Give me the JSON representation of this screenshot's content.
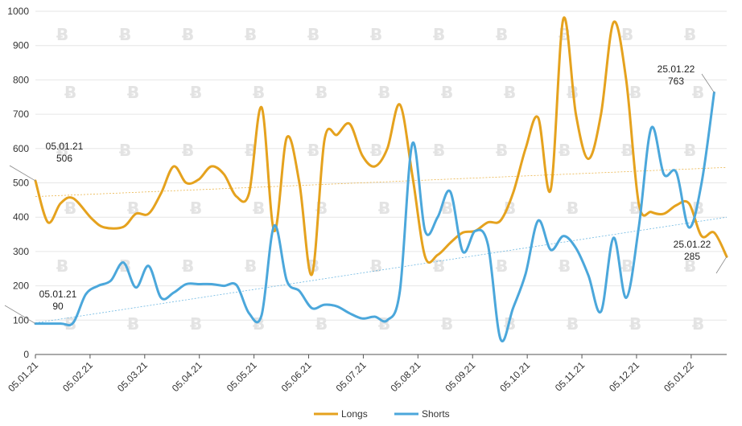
{
  "chart_data": {
    "type": "line",
    "title": "",
    "xlabel": "",
    "ylabel": "",
    "ylim": [
      0,
      1000
    ],
    "yticks": [
      0,
      100,
      200,
      300,
      400,
      500,
      600,
      700,
      800,
      900,
      1000
    ],
    "x_tick_labels": [
      "05.01.21",
      "05.02.21",
      "05.03.21",
      "05.04.21",
      "05.05.21",
      "05.06.21",
      "05.07.21",
      "05.08.21",
      "05.09.21",
      "05.10.21",
      "05.11.21",
      "05.12.21",
      "05.01.22"
    ],
    "grid": "horizontal",
    "legend": "bottom-center",
    "series": [
      {
        "name": "Longs",
        "color": "#E5A21E",
        "trendline": [
          460,
          545
        ],
        "values": [
          [
            0,
            506
          ],
          [
            2,
            385
          ],
          [
            4,
            440
          ],
          [
            6,
            455
          ],
          [
            9,
            395
          ],
          [
            11,
            370
          ],
          [
            14,
            372
          ],
          [
            16,
            410
          ],
          [
            18,
            410
          ],
          [
            20,
            470
          ],
          [
            22,
            548
          ],
          [
            24,
            500
          ],
          [
            26,
            510
          ],
          [
            28,
            548
          ],
          [
            30,
            525
          ],
          [
            32,
            460
          ],
          [
            34,
            470
          ],
          [
            36,
            720
          ],
          [
            38,
            360
          ],
          [
            40,
            632
          ],
          [
            42,
            500
          ],
          [
            44,
            233
          ],
          [
            46,
            625
          ],
          [
            48,
            640
          ],
          [
            50,
            672
          ],
          [
            52,
            580
          ],
          [
            54,
            548
          ],
          [
            56,
            600
          ],
          [
            58,
            728
          ],
          [
            60,
            520
          ],
          [
            62,
            285
          ],
          [
            64,
            290
          ],
          [
            66,
            325
          ],
          [
            68,
            355
          ],
          [
            70,
            360
          ],
          [
            72,
            385
          ],
          [
            74,
            390
          ],
          [
            76,
            470
          ],
          [
            78,
            600
          ],
          [
            80,
            690
          ],
          [
            82,
            480
          ],
          [
            84,
            978
          ],
          [
            86,
            700
          ],
          [
            88,
            570
          ],
          [
            90,
            700
          ],
          [
            92,
            968
          ],
          [
            94,
            800
          ],
          [
            96,
            440
          ],
          [
            98,
            415
          ],
          [
            100,
            410
          ],
          [
            102,
            435
          ],
          [
            104,
            440
          ],
          [
            106,
            345
          ],
          [
            108,
            355
          ],
          [
            110,
            285
          ]
        ]
      },
      {
        "name": "Shorts",
        "color": "#4BA7DB",
        "trendline": [
          92,
          400
        ],
        "values": [
          [
            0,
            90
          ],
          [
            4,
            90
          ],
          [
            6,
            92
          ],
          [
            8,
            175
          ],
          [
            10,
            200
          ],
          [
            12,
            215
          ],
          [
            14,
            268
          ],
          [
            16,
            195
          ],
          [
            18,
            258
          ],
          [
            20,
            165
          ],
          [
            22,
            180
          ],
          [
            24,
            205
          ],
          [
            26,
            205
          ],
          [
            28,
            205
          ],
          [
            30,
            200
          ],
          [
            32,
            202
          ],
          [
            34,
            120
          ],
          [
            36,
            115
          ],
          [
            38,
            375
          ],
          [
            40,
            215
          ],
          [
            42,
            185
          ],
          [
            44,
            135
          ],
          [
            46,
            145
          ],
          [
            48,
            140
          ],
          [
            50,
            120
          ],
          [
            52,
            105
          ],
          [
            54,
            110
          ],
          [
            56,
            100
          ],
          [
            58,
            185
          ],
          [
            60,
            615
          ],
          [
            62,
            360
          ],
          [
            64,
            400
          ],
          [
            66,
            475
          ],
          [
            68,
            300
          ],
          [
            70,
            360
          ],
          [
            72,
            320
          ],
          [
            74,
            45
          ],
          [
            76,
            135
          ],
          [
            78,
            235
          ],
          [
            80,
            390
          ],
          [
            82,
            305
          ],
          [
            84,
            345
          ],
          [
            86,
            310
          ],
          [
            88,
            230
          ],
          [
            90,
            125
          ],
          [
            92,
            340
          ],
          [
            94,
            165
          ],
          [
            96,
            370
          ],
          [
            98,
            660
          ],
          [
            100,
            525
          ],
          [
            102,
            530
          ],
          [
            104,
            370
          ],
          [
            106,
            500
          ],
          [
            108,
            763
          ]
        ]
      }
    ],
    "annotations": [
      {
        "series": "Longs",
        "date": "05.01.21",
        "value": "506"
      },
      {
        "series": "Shorts",
        "date": "05.01.21",
        "value": "90"
      },
      {
        "series": "Shorts",
        "date": "25.01.22",
        "value": "763"
      },
      {
        "series": "Longs",
        "date": "25.01.22",
        "value": "285"
      }
    ]
  }
}
